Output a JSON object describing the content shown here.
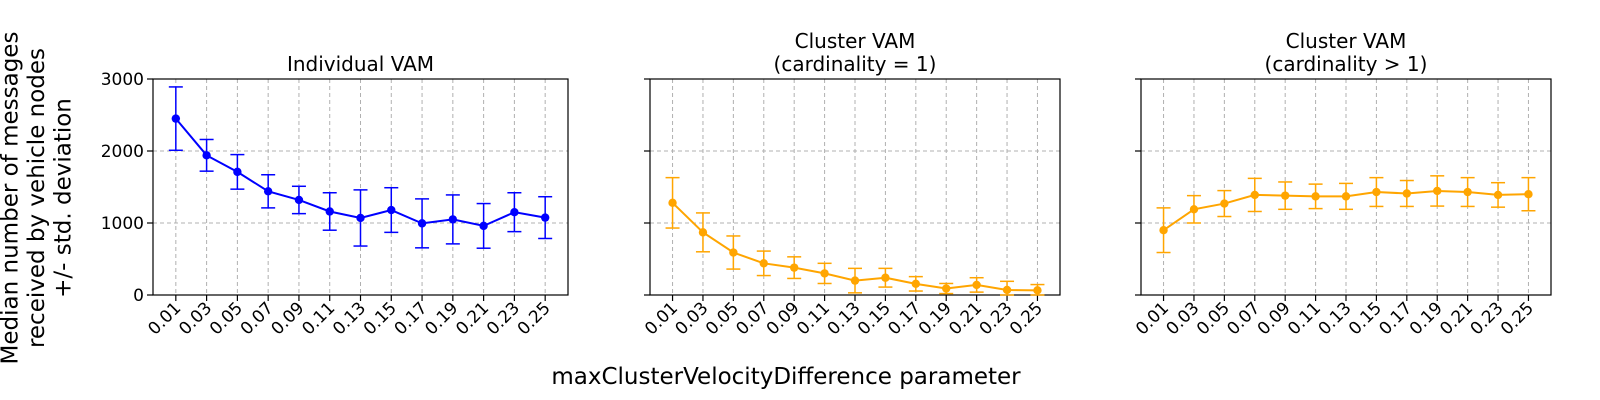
{
  "chart_data": [
    {
      "type": "line",
      "title": [
        "Individual VAM"
      ],
      "x": [
        "0.01",
        "0.03",
        "0.05",
        "0.07",
        "0.09",
        "0.11",
        "0.13",
        "0.15",
        "0.17",
        "0.19",
        "0.21",
        "0.23",
        "0.25"
      ],
      "series": [
        {
          "values": [
            2450,
            1940,
            1710,
            1440,
            1320,
            1160,
            1070,
            1180,
            995,
            1050,
            960,
            1150,
            1075
          ],
          "error": [
            440,
            220,
            240,
            230,
            190,
            260,
            390,
            310,
            340,
            340,
            310,
            270,
            290
          ],
          "color": "#0000ff"
        }
      ],
      "yticks": [
        "0",
        "1000",
        "2000",
        "3000"
      ],
      "ylim": [
        0,
        3000
      ],
      "grid": true
    },
    {
      "type": "line",
      "title": [
        "Cluster VAM",
        "(cardinality = 1)"
      ],
      "x": [
        "0.01",
        "0.03",
        "0.05",
        "0.07",
        "0.09",
        "0.11",
        "0.13",
        "0.15",
        "0.17",
        "0.19",
        "0.21",
        "0.23",
        "0.25"
      ],
      "series": [
        {
          "values": [
            1280,
            870,
            590,
            440,
            380,
            300,
            200,
            240,
            155,
            90,
            140,
            70,
            65
          ],
          "error": [
            350,
            270,
            230,
            170,
            150,
            140,
            170,
            130,
            100,
            70,
            100,
            120,
            80
          ],
          "color": "#ffa500"
        }
      ],
      "yticks": [
        "0",
        "1000",
        "2000",
        "3000"
      ],
      "ylim": [
        0,
        3000
      ],
      "grid": true
    },
    {
      "type": "line",
      "title": [
        "Cluster VAM",
        "(cardinality > 1)"
      ],
      "x": [
        "0.01",
        "0.03",
        "0.05",
        "0.07",
        "0.09",
        "0.11",
        "0.13",
        "0.15",
        "0.17",
        "0.19",
        "0.21",
        "0.23",
        "0.25"
      ],
      "series": [
        {
          "values": [
            900,
            1190,
            1270,
            1390,
            1380,
            1370,
            1370,
            1430,
            1410,
            1445,
            1430,
            1390,
            1400
          ],
          "error": [
            310,
            190,
            180,
            230,
            190,
            170,
            180,
            200,
            180,
            210,
            200,
            170,
            230
          ],
          "color": "#ffa500"
        }
      ],
      "yticks": [
        "0",
        "1000",
        "2000",
        "3000"
      ],
      "ylim": [
        0,
        3000
      ],
      "grid": true
    }
  ],
  "shared_ylabel": [
    "Median number of messages",
    "received by vehicle nodes",
    "+/- std. deviation"
  ],
  "shared_xlabel": "maxClusterVelocityDifference parameter"
}
